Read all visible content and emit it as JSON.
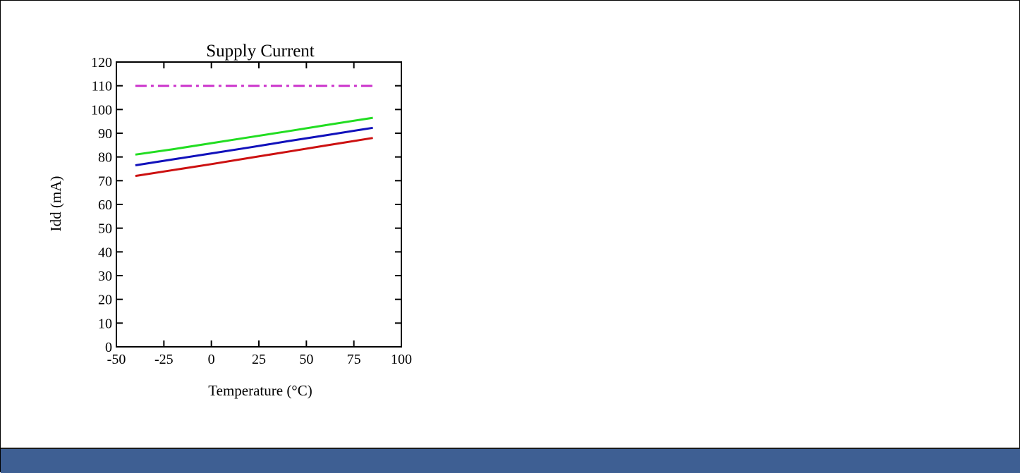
{
  "chart_data": {
    "type": "line",
    "title": "Supply Current",
    "xlabel": "Temperature (°C)",
    "ylabel": "Idd (mA)",
    "xlim": [
      -50,
      100
    ],
    "ylim": [
      0,
      120
    ],
    "xticks": [
      -50,
      -25,
      0,
      25,
      50,
      75,
      100
    ],
    "yticks": [
      0,
      10,
      20,
      30,
      40,
      50,
      60,
      70,
      80,
      90,
      100,
      110,
      120
    ],
    "grid": false,
    "legend": "none",
    "series": [
      {
        "color": "#22dd22",
        "style": "solid",
        "x": [
          -40,
          -20,
          0,
          20,
          40,
          60,
          85
        ],
        "y": [
          81,
          83.3,
          85.8,
          88.3,
          90.8,
          93.4,
          96.5
        ]
      },
      {
        "color": "#1111bb",
        "style": "solid",
        "x": [
          -40,
          -20,
          0,
          20,
          40,
          60,
          85
        ],
        "y": [
          76.5,
          79,
          81.5,
          84,
          86.6,
          89.1,
          92.3
        ]
      },
      {
        "color": "#cc1111",
        "style": "solid",
        "x": [
          -40,
          -20,
          0,
          20,
          40,
          60,
          85
        ],
        "y": [
          72,
          74.5,
          77,
          79.6,
          82.2,
          84.8,
          88
        ]
      },
      {
        "color": "#cc33cc",
        "style": "dashdot",
        "x": [
          -40,
          85
        ],
        "y": [
          110,
          110
        ]
      }
    ]
  },
  "colors": {
    "footer_bar": "#3e5f93"
  }
}
